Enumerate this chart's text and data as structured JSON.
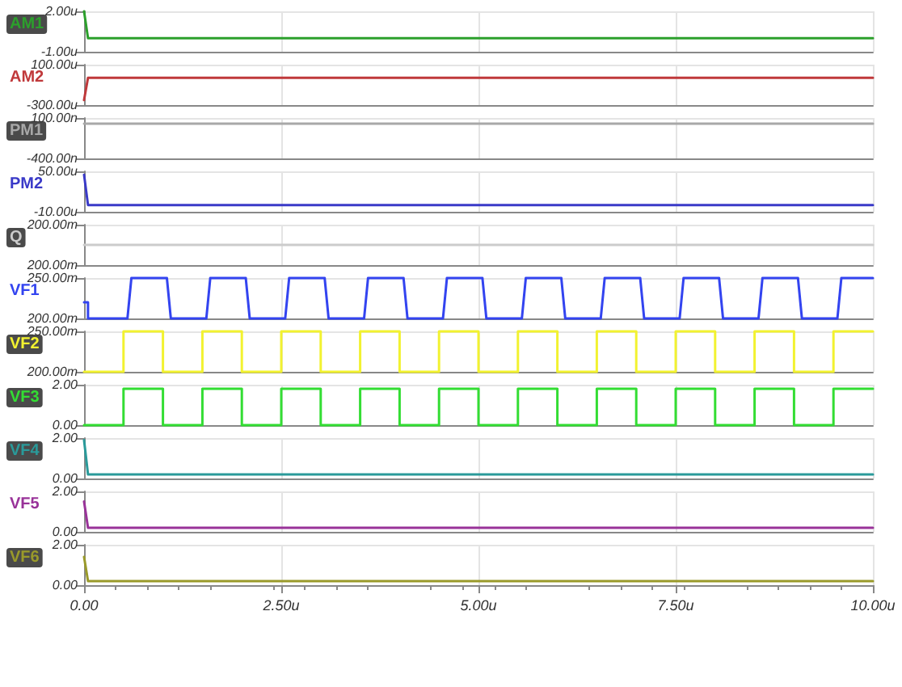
{
  "chart_data": [
    {
      "type": "line",
      "xlim": [
        0,
        10
      ],
      "xticks": [
        {
          "value": 0,
          "label": null
        },
        {
          "value": 2.5,
          "label": null
        },
        {
          "value": 5,
          "label": null
        },
        {
          "value": 7.5,
          "label": null
        },
        {
          "value": 10,
          "label": null
        }
      ],
      "tick_labels": "y",
      "grid": true,
      "ylim": [
        -1,
        2
      ],
      "yticks": [
        {
          "value": -1,
          "label": "-1.00u"
        },
        {
          "value": 2,
          "label": "2.00u"
        }
      ],
      "x": [
        0,
        0.05,
        10
      ],
      "series": [
        {
          "name": "AM1",
          "color": "#2ca02c",
          "values": [
            2,
            0,
            0
          ]
        }
      ]
    },
    {
      "type": "line",
      "xlim": [
        0,
        10
      ],
      "xticks": [
        {
          "value": 0,
          "label": null
        },
        {
          "value": 2.5,
          "label": null
        },
        {
          "value": 5,
          "label": null
        },
        {
          "value": 7.5,
          "label": null
        },
        {
          "value": 10,
          "label": null
        }
      ],
      "tick_labels": "y",
      "grid": true,
      "ylim": [
        -300,
        100
      ],
      "yticks": [
        {
          "value": -300,
          "label": "-300.00u"
        },
        {
          "value": 100,
          "label": "100.00u"
        }
      ],
      "x": [
        0,
        0.05,
        10
      ],
      "series": [
        {
          "name": "AM2",
          "color": "#c0393b",
          "values": [
            -250,
            -30,
            -30
          ]
        }
      ]
    },
    {
      "type": "line",
      "xlim": [
        0,
        10
      ],
      "xticks": [
        {
          "value": 0,
          "label": null
        },
        {
          "value": 2.5,
          "label": null
        },
        {
          "value": 5,
          "label": null
        },
        {
          "value": 7.5,
          "label": null
        },
        {
          "value": 10,
          "label": null
        }
      ],
      "tick_labels": "y",
      "grid": true,
      "ylim": [
        -400,
        100
      ],
      "yticks": [
        {
          "value": -400,
          "label": "-400.00n"
        },
        {
          "value": 100,
          "label": "100.00n"
        }
      ],
      "x": [
        0,
        10
      ],
      "series": [
        {
          "name": "PM1",
          "color": "#a8a8a8",
          "values": [
            30,
            30
          ]
        }
      ]
    },
    {
      "type": "line",
      "xlim": [
        0,
        10
      ],
      "xticks": [
        {
          "value": 0,
          "label": null
        },
        {
          "value": 2.5,
          "label": null
        },
        {
          "value": 5,
          "label": null
        },
        {
          "value": 7.5,
          "label": null
        },
        {
          "value": 10,
          "label": null
        }
      ],
      "tick_labels": "y",
      "grid": true,
      "ylim": [
        -10,
        50
      ],
      "yticks": [
        {
          "value": -10,
          "label": "-10.00u"
        },
        {
          "value": 50,
          "label": "50.00u"
        }
      ],
      "x": [
        0,
        0.05,
        10
      ],
      "series": [
        {
          "name": "PM2",
          "color": "#3a3ac8",
          "values": [
            45,
            0,
            0
          ]
        }
      ]
    },
    {
      "type": "line",
      "xlim": [
        0,
        10
      ],
      "xticks": [
        {
          "value": 0,
          "label": null
        },
        {
          "value": 2.5,
          "label": null
        },
        {
          "value": 5,
          "label": null
        },
        {
          "value": 7.5,
          "label": null
        },
        {
          "value": 10,
          "label": null
        }
      ],
      "tick_labels": "y",
      "grid": true,
      "ylim": [
        199.995,
        200.005
      ],
      "yticks": [
        {
          "value": 199.995,
          "label": "200.00m"
        },
        {
          "value": 200.005,
          "label": "200.00m"
        }
      ],
      "x": [
        0,
        10
      ],
      "series": [
        {
          "name": "Q",
          "color": "#cccccc",
          "values": [
            200,
            200
          ]
        }
      ]
    },
    {
      "type": "line",
      "xlim": [
        0,
        10
      ],
      "xticks": [
        {
          "value": 0,
          "label": null
        },
        {
          "value": 2.5,
          "label": null
        },
        {
          "value": 5,
          "label": null
        },
        {
          "value": 7.5,
          "label": null
        },
        {
          "value": 10,
          "label": null
        }
      ],
      "tick_labels": "y",
      "grid": true,
      "ylim": [
        200,
        250
      ],
      "yticks": [
        {
          "value": 200,
          "label": "200.00m"
        },
        {
          "value": 250,
          "label": "250.00m"
        }
      ],
      "x": [
        0,
        0.05,
        0.05,
        0.55,
        0.6,
        1.05,
        1.1,
        1.55,
        1.6,
        2.05,
        2.1,
        2.55,
        2.6,
        3.05,
        3.1,
        3.55,
        3.6,
        4.05,
        4.1,
        4.55,
        4.6,
        5.05,
        5.1,
        5.55,
        5.6,
        6.05,
        6.1,
        6.55,
        6.6,
        7.05,
        7.1,
        7.55,
        7.6,
        8.05,
        8.1,
        8.55,
        8.6,
        9.05,
        9.1,
        9.55,
        9.6,
        10
      ],
      "series": [
        {
          "name": "VF1",
          "color": "#3344f0",
          "values": [
            220,
            220,
            200,
            200,
            250,
            250,
            200,
            200,
            250,
            250,
            200,
            200,
            250,
            250,
            200,
            200,
            250,
            250,
            200,
            200,
            250,
            250,
            200,
            200,
            250,
            250,
            200,
            200,
            250,
            250,
            200,
            200,
            250,
            250,
            200,
            200,
            250,
            250,
            200,
            200,
            250,
            250
          ]
        }
      ]
    },
    {
      "type": "line",
      "xlim": [
        0,
        10
      ],
      "xticks": [
        {
          "value": 0,
          "label": null
        },
        {
          "value": 2.5,
          "label": null
        },
        {
          "value": 5,
          "label": null
        },
        {
          "value": 7.5,
          "label": null
        },
        {
          "value": 10,
          "label": null
        }
      ],
      "tick_labels": "y",
      "grid": true,
      "ylim": [
        200,
        250
      ],
      "yticks": [
        {
          "value": 200,
          "label": "200.00m"
        },
        {
          "value": 250,
          "label": "250.00m"
        }
      ],
      "x": [
        0,
        0.5,
        0.5,
        1,
        1,
        1.5,
        1.5,
        2,
        2,
        2.5,
        2.5,
        3,
        3,
        3.5,
        3.5,
        4,
        4,
        4.5,
        4.5,
        5,
        5,
        5.5,
        5.5,
        6,
        6,
        6.5,
        6.5,
        7,
        7,
        7.5,
        7.5,
        8,
        8,
        8.5,
        8.5,
        9,
        9,
        9.5,
        9.5,
        10
      ],
      "series": [
        {
          "name": "VF2",
          "color": "#f2f230",
          "values": [
            200,
            200,
            250,
            250,
            200,
            200,
            250,
            250,
            200,
            200,
            250,
            250,
            200,
            200,
            250,
            250,
            200,
            200,
            250,
            250,
            200,
            200,
            250,
            250,
            200,
            200,
            250,
            250,
            200,
            200,
            250,
            250,
            200,
            200,
            250,
            250,
            200,
            200,
            250,
            250
          ]
        }
      ]
    },
    {
      "type": "line",
      "xlim": [
        0,
        10
      ],
      "xticks": [
        {
          "value": 0,
          "label": null
        },
        {
          "value": 2.5,
          "label": null
        },
        {
          "value": 5,
          "label": null
        },
        {
          "value": 7.5,
          "label": null
        },
        {
          "value": 10,
          "label": null
        }
      ],
      "tick_labels": "y",
      "grid": true,
      "ylim": [
        0,
        2
      ],
      "yticks": [
        {
          "value": 0,
          "label": "0.00"
        },
        {
          "value": 2,
          "label": "2.00"
        }
      ],
      "x": [
        0,
        0.5,
        0.5,
        1,
        1,
        1.5,
        1.5,
        2,
        2,
        2.5,
        2.5,
        3,
        3,
        3.5,
        3.5,
        4,
        4,
        4.5,
        4.5,
        5,
        5,
        5.5,
        5.5,
        6,
        6,
        6.5,
        6.5,
        7,
        7,
        7.5,
        7.5,
        8,
        8,
        8.5,
        8.5,
        9,
        9,
        9.5,
        9.5,
        10
      ],
      "series": [
        {
          "name": "VF3",
          "color": "#33dd33",
          "values": [
            0,
            0,
            1.8,
            1.8,
            0,
            0,
            1.8,
            1.8,
            0,
            0,
            1.8,
            1.8,
            0,
            0,
            1.8,
            1.8,
            0,
            0,
            1.8,
            1.8,
            0,
            0,
            1.8,
            1.8,
            0,
            0,
            1.8,
            1.8,
            0,
            0,
            1.8,
            1.8,
            0,
            0,
            1.8,
            1.8,
            0,
            0,
            1.8,
            1.8
          ]
        }
      ]
    },
    {
      "type": "line",
      "xlim": [
        0,
        10
      ],
      "xticks": [
        {
          "value": 0,
          "label": null
        },
        {
          "value": 2.5,
          "label": null
        },
        {
          "value": 5,
          "label": null
        },
        {
          "value": 7.5,
          "label": null
        },
        {
          "value": 10,
          "label": null
        }
      ],
      "tick_labels": "y",
      "grid": true,
      "ylim": [
        0,
        2
      ],
      "yticks": [
        {
          "value": 0,
          "label": "0.00"
        },
        {
          "value": 2,
          "label": "2.00"
        }
      ],
      "x": [
        0,
        0.05,
        10
      ],
      "series": [
        {
          "name": "VF4",
          "color": "#2a9a9a",
          "values": [
            1.9,
            0.2,
            0.2
          ]
        }
      ]
    },
    {
      "type": "line",
      "xlim": [
        0,
        10
      ],
      "xticks": [
        {
          "value": 0,
          "label": null
        },
        {
          "value": 2.5,
          "label": null
        },
        {
          "value": 5,
          "label": null
        },
        {
          "value": 7.5,
          "label": null
        },
        {
          "value": 10,
          "label": null
        }
      ],
      "tick_labels": "y",
      "grid": true,
      "ylim": [
        0,
        2
      ],
      "yticks": [
        {
          "value": 0,
          "label": "0.00"
        },
        {
          "value": 2,
          "label": "2.00"
        }
      ],
      "x": [
        0,
        0.05,
        10
      ],
      "series": [
        {
          "name": "VF5",
          "color": "#993399",
          "values": [
            1.5,
            0.2,
            0.2
          ]
        }
      ]
    },
    {
      "type": "line",
      "xlim": [
        0,
        10
      ],
      "xticks": [
        {
          "value": 0,
          "label": "0.00"
        },
        {
          "value": 2.5,
          "label": "2.50u"
        },
        {
          "value": 5,
          "label": "5.00u"
        },
        {
          "value": 7.5,
          "label": "7.50u"
        },
        {
          "value": 10,
          "label": "10.00u"
        }
      ],
      "grid": true,
      "ylim": [
        0,
        2
      ],
      "yticks": [
        {
          "value": 0,
          "label": "0.00"
        },
        {
          "value": 2,
          "label": "2.00"
        }
      ],
      "x": [
        0,
        0.05,
        10
      ],
      "series": [
        {
          "name": "VF6",
          "color": "#9a9a2a",
          "values": [
            1.4,
            0.2,
            0.2
          ]
        }
      ]
    }
  ]
}
